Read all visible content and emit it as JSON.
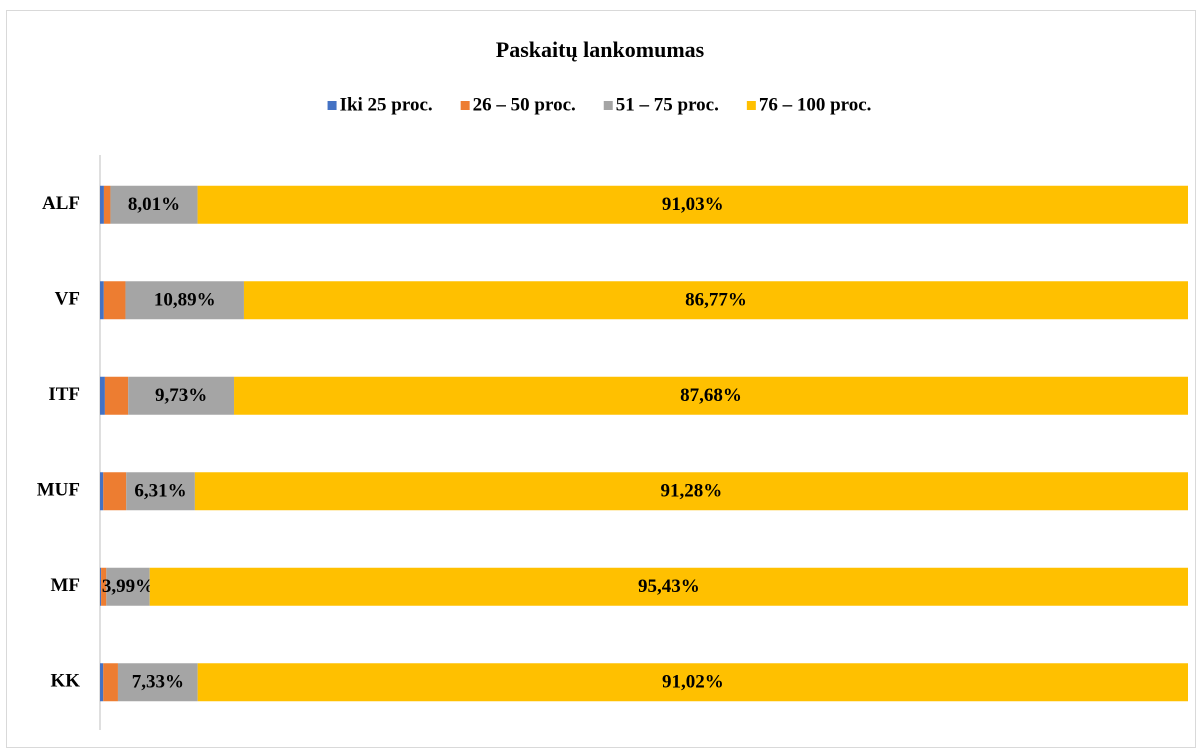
{
  "chart_data": {
    "type": "stacked_barh",
    "title": "Paskaitų lankomumas",
    "categories": [
      "ALF",
      "VF",
      "ITF",
      "MUF",
      "MF",
      "KK"
    ],
    "xlim": [
      0,
      100
    ],
    "legend": "top",
    "series": [
      {
        "name": "Iki 25 proc.",
        "color": "#4472c4",
        "values": [
          0.36,
          0.35,
          0.45,
          0.3,
          0.1,
          0.3
        ]
      },
      {
        "name": "26 – 50 proc.",
        "color": "#ed7d31",
        "values": [
          0.6,
          1.99,
          2.14,
          2.11,
          0.48,
          1.35
        ]
      },
      {
        "name": "51 – 75 proc.",
        "color": "#a5a5a5",
        "values": [
          8.01,
          10.89,
          9.73,
          6.31,
          3.99,
          7.33
        ],
        "value_labels": [
          "8,01%",
          "10,89%",
          "9,73%",
          "6,31%",
          "3,99%",
          "7,33%"
        ]
      },
      {
        "name": "76 – 100 proc.",
        "color": "#ffc000",
        "values": [
          91.03,
          86.77,
          87.68,
          91.28,
          95.43,
          91.02
        ],
        "value_labels": [
          "91,03%",
          "86,77%",
          "87,68%",
          "91,28%",
          "95,43%",
          "91,02%"
        ]
      }
    ]
  }
}
